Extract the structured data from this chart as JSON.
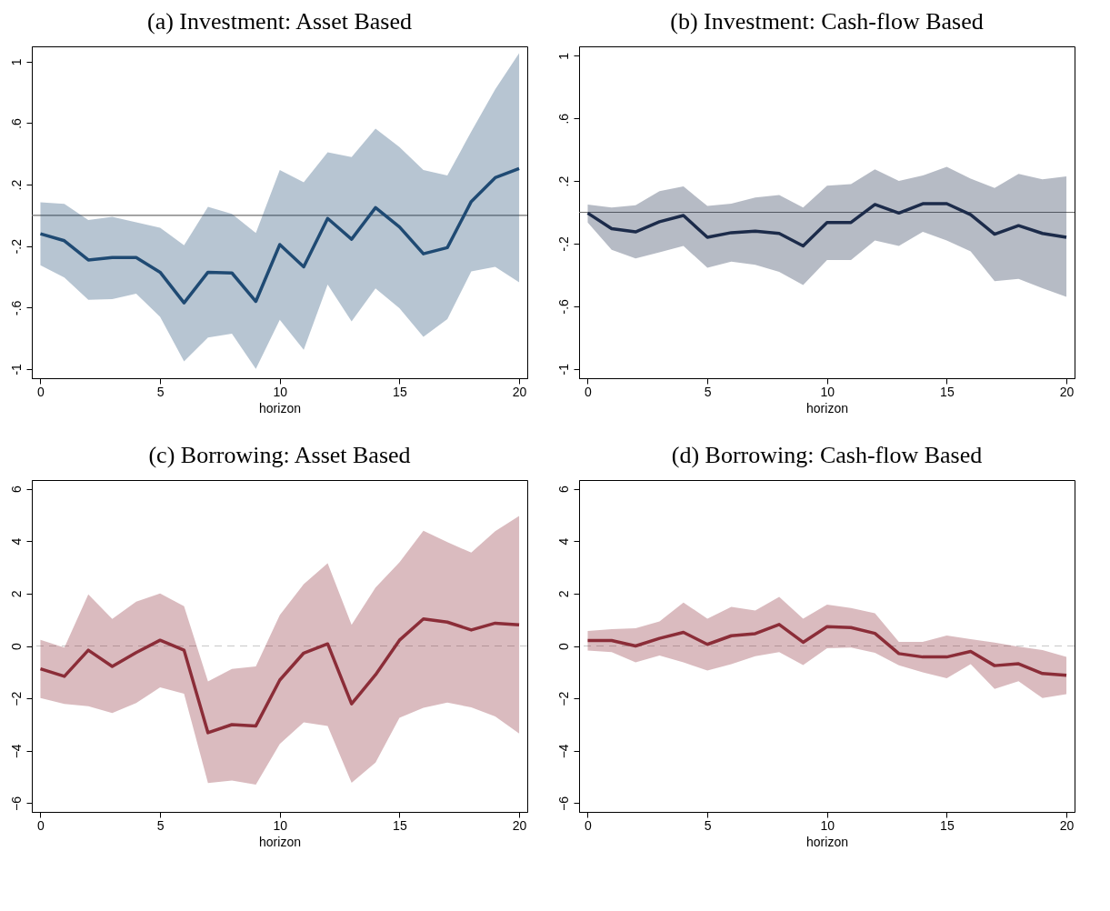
{
  "chart_data": [
    {
      "type": "line",
      "title": "(a) Investment: Asset Based",
      "xlabel": "horizon",
      "x": [
        0,
        1,
        2,
        3,
        4,
        5,
        6,
        7,
        8,
        9,
        10,
        11,
        12,
        13,
        14,
        15,
        16,
        17,
        18,
        19,
        20
      ],
      "xlim": [
        -0.36,
        20.34
      ],
      "xticks": [
        0,
        5,
        10,
        15,
        20
      ],
      "ylim": [
        -1.06,
        1.1
      ],
      "yticks": [
        {
          "value": -1,
          "label": "-1"
        },
        {
          "value": -0.6,
          "label": "-.6"
        },
        {
          "value": -0.2,
          "label": "-.2"
        },
        {
          "value": 0.2,
          "label": ".2"
        },
        {
          "value": 0.6,
          "label": ".6"
        },
        {
          "value": 1,
          "label": "1"
        }
      ],
      "series": [
        {
          "color": "#1f4a73",
          "values": [
            -0.12,
            -0.165,
            -0.29,
            -0.275,
            -0.275,
            -0.37,
            -0.57,
            -0.37,
            -0.375,
            -0.56,
            -0.19,
            -0.335,
            -0.02,
            -0.155,
            0.05,
            -0.075,
            -0.25,
            -0.21,
            0.09,
            0.245,
            0.305
          ],
          "upper": [
            0.085,
            0.075,
            -0.03,
            -0.01,
            -0.045,
            -0.08,
            -0.195,
            0.055,
            0.01,
            -0.115,
            0.295,
            0.215,
            0.41,
            0.38,
            0.565,
            0.445,
            0.295,
            0.26,
            0.545,
            0.82,
            1.055
          ],
          "lower": [
            -0.325,
            -0.405,
            -0.55,
            -0.545,
            -0.51,
            -0.66,
            -0.95,
            -0.795,
            -0.77,
            -1.0,
            -0.68,
            -0.875,
            -0.45,
            -0.69,
            -0.475,
            -0.605,
            -0.79,
            -0.675,
            -0.365,
            -0.335,
            -0.435
          ]
        }
      ],
      "ref_lines": [
        {
          "axis": "y",
          "value": 0,
          "color": "#6e6e6e",
          "line_style": "solid"
        }
      ]
    },
    {
      "type": "line",
      "title": "(b) Investment: Cash-flow Based",
      "xlabel": "horizon",
      "x": [
        0,
        1,
        2,
        3,
        4,
        5,
        6,
        7,
        8,
        9,
        10,
        11,
        12,
        13,
        14,
        15,
        16,
        17,
        18,
        19,
        20
      ],
      "xlim": [
        -0.36,
        20.34
      ],
      "xticks": [
        0,
        5,
        10,
        15,
        20
      ],
      "ylim": [
        -1.06,
        1.06
      ],
      "yticks": [
        {
          "value": -1,
          "label": "-1"
        },
        {
          "value": -0.6,
          "label": "-.6"
        },
        {
          "value": -0.2,
          "label": "-.2"
        },
        {
          "value": 0.2,
          "label": ".2"
        },
        {
          "value": 0.6,
          "label": ".6"
        },
        {
          "value": 1,
          "label": "1"
        }
      ],
      "series": [
        {
          "color": "#1c2b4a",
          "values": [
            -0.005,
            -0.105,
            -0.125,
            -0.06,
            -0.02,
            -0.16,
            -0.13,
            -0.12,
            -0.135,
            -0.215,
            -0.065,
            -0.065,
            0.05,
            -0.005,
            0.055,
            0.055,
            -0.015,
            -0.14,
            -0.085,
            -0.135,
            -0.16
          ],
          "upper": [
            0.05,
            0.03,
            0.045,
            0.135,
            0.165,
            0.04,
            0.055,
            0.095,
            0.11,
            0.03,
            0.17,
            0.18,
            0.275,
            0.2,
            0.235,
            0.29,
            0.215,
            0.155,
            0.245,
            0.21,
            0.23
          ],
          "lower": [
            -0.065,
            -0.24,
            -0.295,
            -0.255,
            -0.215,
            -0.355,
            -0.315,
            -0.335,
            -0.38,
            -0.465,
            -0.305,
            -0.305,
            -0.18,
            -0.215,
            -0.125,
            -0.18,
            -0.25,
            -0.44,
            -0.425,
            -0.485,
            -0.54
          ]
        }
      ],
      "ref_lines": [
        {
          "axis": "y",
          "value": 0,
          "color": "#6e6e6e",
          "line_style": "solid"
        }
      ]
    },
    {
      "type": "line",
      "title": "(c) Borrowing: Asset Based",
      "xlabel": "horizon",
      "x": [
        0,
        1,
        2,
        3,
        4,
        5,
        6,
        7,
        8,
        9,
        10,
        11,
        12,
        13,
        14,
        15,
        16,
        17,
        18,
        19,
        20
      ],
      "xlim": [
        -0.36,
        20.34
      ],
      "xticks": [
        0,
        5,
        10,
        15,
        20
      ],
      "ylim": [
        -6.33,
        6.33
      ],
      "yticks": [
        -6,
        -4,
        -2,
        0,
        2,
        4,
        6
      ],
      "series": [
        {
          "color": "#8b2d38",
          "values": [
            -0.87,
            -1.16,
            -0.16,
            -0.78,
            -0.25,
            0.22,
            -0.16,
            -3.31,
            -3.0,
            -3.05,
            -1.3,
            -0.27,
            0.08,
            -2.21,
            -1.1,
            0.22,
            1.03,
            0.91,
            0.61,
            0.87,
            0.81
          ],
          "upper": [
            0.23,
            -0.06,
            1.97,
            1.03,
            1.69,
            2.0,
            1.52,
            -1.35,
            -0.88,
            -0.78,
            1.18,
            2.36,
            3.16,
            0.81,
            2.23,
            3.19,
            4.4,
            3.96,
            3.56,
            4.38,
            4.96
          ],
          "lower": [
            -1.99,
            -2.21,
            -2.3,
            -2.56,
            -2.18,
            -1.58,
            -1.82,
            -5.23,
            -5.13,
            -5.29,
            -3.74,
            -2.91,
            -3.05,
            -5.22,
            -4.45,
            -2.74,
            -2.36,
            -2.16,
            -2.34,
            -2.69,
            -3.34
          ]
        }
      ],
      "ref_lines": [
        {
          "axis": "y",
          "value": 0,
          "color": "#c8c8c8",
          "line_style": "dashed"
        }
      ]
    },
    {
      "type": "line",
      "title": "(d) Borrowing: Cash-flow Based",
      "xlabel": "horizon",
      "x": [
        0,
        1,
        2,
        3,
        4,
        5,
        6,
        7,
        8,
        9,
        10,
        11,
        12,
        13,
        14,
        15,
        16,
        17,
        18,
        19,
        20
      ],
      "xlim": [
        -0.36,
        20.34
      ],
      "xticks": [
        0,
        5,
        10,
        15,
        20
      ],
      "ylim": [
        -6.33,
        6.33
      ],
      "yticks": [
        -6,
        -4,
        -2,
        0,
        2,
        4,
        6
      ],
      "series": [
        {
          "color": "#8b2d38",
          "values": [
            0.21,
            0.21,
            0,
            0.29,
            0.52,
            0.06,
            0.39,
            0.47,
            0.82,
            0.14,
            0.74,
            0.7,
            0.48,
            -0.29,
            -0.42,
            -0.42,
            -0.21,
            -0.75,
            -0.68,
            -1.05,
            -1.12
          ],
          "upper": [
            0.57,
            0.64,
            0.68,
            0.94,
            1.66,
            1.04,
            1.49,
            1.35,
            1.87,
            1.04,
            1.58,
            1.45,
            1.25,
            0.16,
            0.16,
            0.4,
            0.26,
            0.13,
            -0.03,
            -0.16,
            -0.42
          ],
          "lower": [
            -0.17,
            -0.23,
            -0.62,
            -0.36,
            -0.62,
            -0.94,
            -0.69,
            -0.39,
            -0.23,
            -0.73,
            -0.09,
            -0.06,
            -0.26,
            -0.74,
            -1.01,
            -1.23,
            -0.69,
            -1.64,
            -1.34,
            -1.99,
            -1.84
          ]
        }
      ],
      "ref_lines": [
        {
          "axis": "y",
          "value": 0,
          "color": "#c8c8c8",
          "line_style": "dashed"
        }
      ]
    }
  ]
}
